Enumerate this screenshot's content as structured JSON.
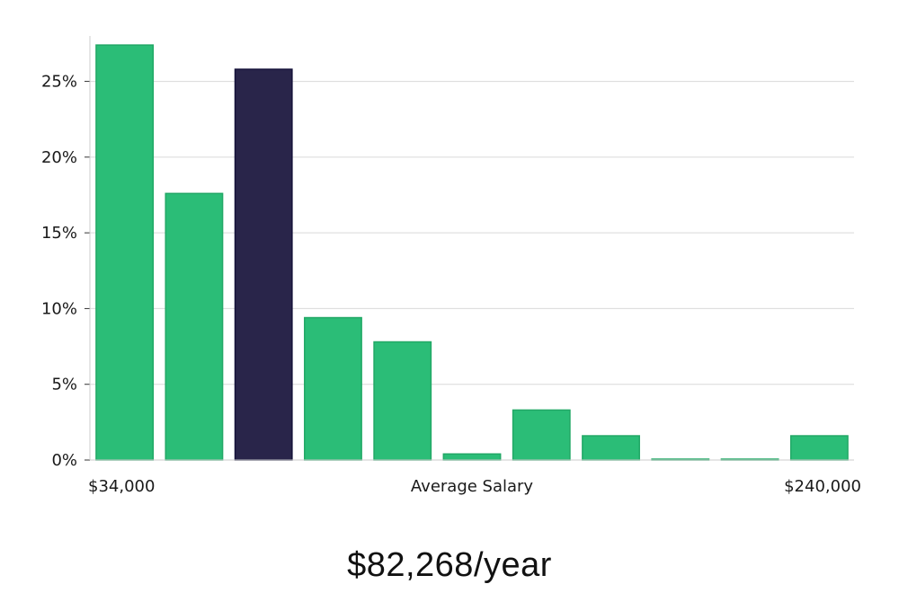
{
  "chart_data": {
    "type": "bar",
    "xlabel": "Average Salary",
    "x_range_labels": [
      "$34,000",
      "$240,000"
    ],
    "ylim": [
      0,
      28
    ],
    "yticks": [
      0,
      5,
      10,
      15,
      20,
      25
    ],
    "ytick_suffix": "%",
    "grid": true,
    "values": [
      27.4,
      17.6,
      25.8,
      9.4,
      7.8,
      0.4,
      3.3,
      1.6,
      0.05,
      0.05,
      1.6
    ],
    "highlight_index": 2,
    "colors": {
      "bar": "#2bbd77",
      "highlight": "#29254a",
      "grid": "#d9d9d9",
      "axis": "#bbbbbb"
    }
  },
  "summary": {
    "salary": "$82,268/year"
  }
}
